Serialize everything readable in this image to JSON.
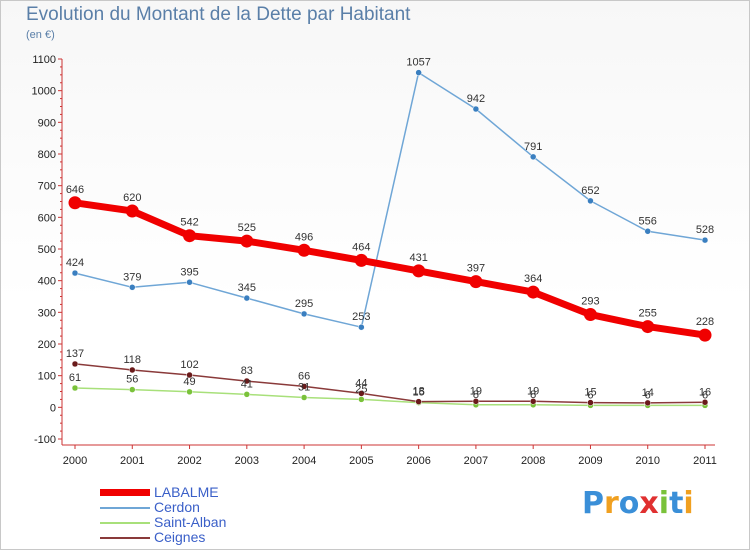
{
  "header": {
    "title": "Evolution du Montant de la Dette par Habitant",
    "subtitle": "(en €)"
  },
  "brand": {
    "text": "Proxiti",
    "letter_colors": [
      "#3a8fd8",
      "#f0a020",
      "#3a8fd8",
      "#e03030",
      "#7ac23a",
      "#3a8fd8",
      "#f0a020"
    ]
  },
  "chart_data": {
    "type": "line",
    "title": "Evolution du Montant de la Dette par Habitant",
    "subtitle": "(en €)",
    "xlabel": "",
    "ylabel": "",
    "ylim": [
      -100,
      1100
    ],
    "yticks": [
      -100,
      0,
      100,
      200,
      300,
      400,
      500,
      600,
      700,
      800,
      900,
      1000,
      1100
    ],
    "categories": [
      "2000",
      "2001",
      "2002",
      "2003",
      "2004",
      "2005",
      "2006",
      "2007",
      "2008",
      "2009",
      "2010",
      "2011"
    ],
    "grid": false,
    "legend_position": "bottom-left",
    "series": [
      {
        "name": "LABALME",
        "color": "#f00000",
        "point_color": "#f00000",
        "weight": "thick",
        "values": [
          646,
          620,
          542,
          525,
          496,
          464,
          431,
          397,
          364,
          293,
          255,
          228
        ],
        "labels": [
          "646",
          "620",
          "542",
          "525",
          "496",
          "464",
          "431",
          "397",
          "364",
          "293",
          "255",
          "228"
        ]
      },
      {
        "name": "Cerdon",
        "color": "#6fa6d6",
        "point_color": "#3a7fc0",
        "weight": "thin",
        "values": [
          424,
          379,
          395,
          345,
          295,
          253,
          1057,
          942,
          791,
          652,
          556,
          528
        ],
        "labels": [
          "424",
          "379",
          "395",
          "345",
          "295",
          "253",
          "1057",
          "942",
          "791",
          "652",
          "556",
          "528"
        ]
      },
      {
        "name": "Saint-Alban",
        "color": "#a8e07a",
        "point_color": "#7ac23a",
        "weight": "thin",
        "values": [
          61,
          56,
          49,
          41,
          31,
          25,
          15,
          8,
          8,
          6,
          6,
          6
        ],
        "labels": [
          "61",
          "56",
          "49",
          "41",
          "31",
          "25",
          "15",
          "8",
          "8",
          "6",
          "6",
          "6"
        ]
      },
      {
        "name": "Ceignes",
        "color": "#8a3a3a",
        "point_color": "#6a1a1a",
        "weight": "thin",
        "values": [
          137,
          118,
          102,
          83,
          66,
          44,
          18,
          19,
          19,
          15,
          14,
          16
        ],
        "labels": [
          "137",
          "118",
          "102",
          "83",
          "66",
          "44",
          "18",
          "19",
          "19",
          "15",
          "14",
          "16"
        ]
      }
    ]
  }
}
